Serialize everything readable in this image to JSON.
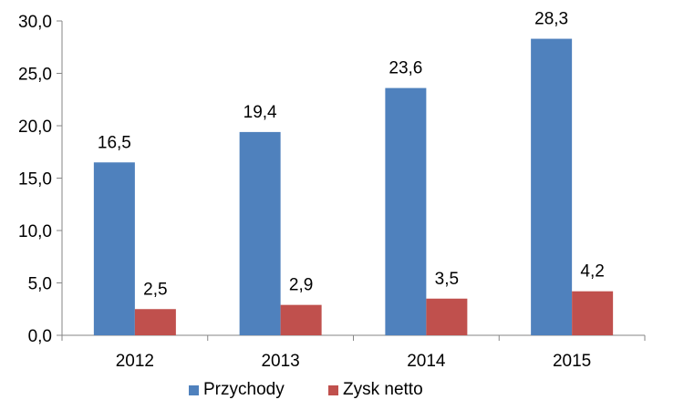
{
  "chart_data": {
    "type": "bar",
    "categories": [
      "2012",
      "2013",
      "2014",
      "2015"
    ],
    "series": [
      {
        "name": "Przychody",
        "color": "#4F81BD",
        "values": [
          16.5,
          19.4,
          23.6,
          28.3
        ],
        "labels": [
          "16,5",
          "19,4",
          "23,6",
          "28,3"
        ]
      },
      {
        "name": "Zysk netto",
        "color": "#C0504D",
        "values": [
          2.5,
          2.9,
          3.5,
          4.2
        ],
        "labels": [
          "2,5",
          "2,9",
          "3,5",
          "4,2"
        ]
      }
    ],
    "ylim": [
      0,
      30
    ],
    "yticks": [
      0,
      5,
      10,
      15,
      20,
      25,
      30
    ],
    "ytick_labels": [
      "0,0",
      "5,0",
      "10,0",
      "15,0",
      "20,0",
      "25,0",
      "30,0"
    ],
    "grid": false,
    "legend_position": "bottom",
    "axis_color": "#868686"
  }
}
